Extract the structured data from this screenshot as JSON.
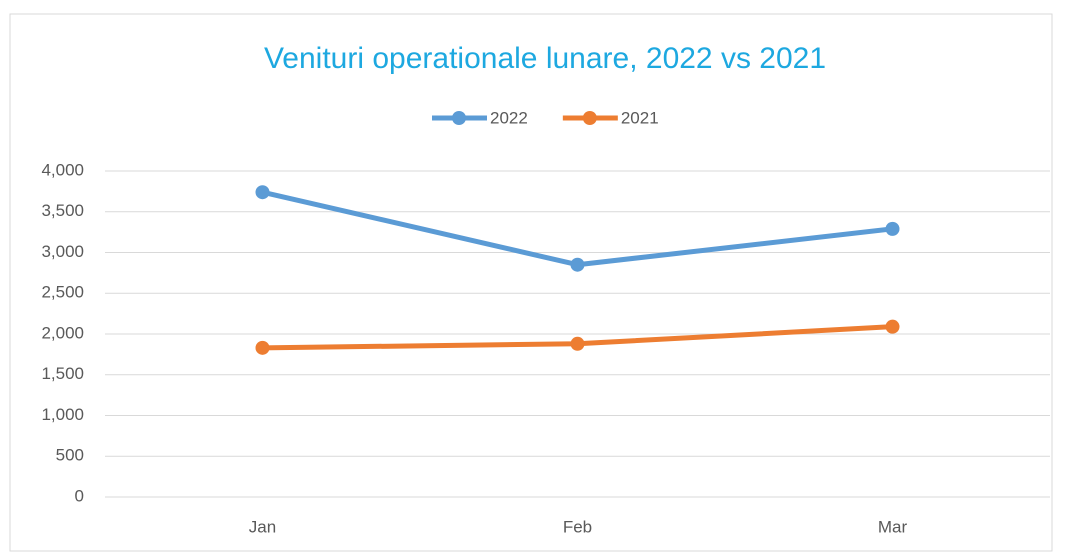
{
  "chart_data": {
    "type": "line",
    "title": "Venituri operationale lunare, 2022 vs 2021",
    "categories": [
      "Jan",
      "Feb",
      "Mar"
    ],
    "series": [
      {
        "name": "2022",
        "color": "#5b9bd5",
        "values": [
          3740,
          2850,
          3290
        ]
      },
      {
        "name": "2021",
        "color": "#ed7d31",
        "values": [
          1830,
          1880,
          2090
        ]
      }
    ],
    "ylim": [
      0,
      4000
    ],
    "yticks": [
      0,
      500,
      {
        "value": 1000,
        "label": "1,000"
      },
      {
        "value": 1500,
        "label": "1,500"
      },
      {
        "value": 2000,
        "label": "2,000"
      },
      {
        "value": 2500,
        "label": "2,500"
      },
      {
        "value": 3000,
        "label": "3,000"
      },
      {
        "value": 3500,
        "label": "3,500"
      },
      {
        "value": 4000,
        "label": "4,000"
      }
    ],
    "grid": true,
    "legend": "top"
  }
}
